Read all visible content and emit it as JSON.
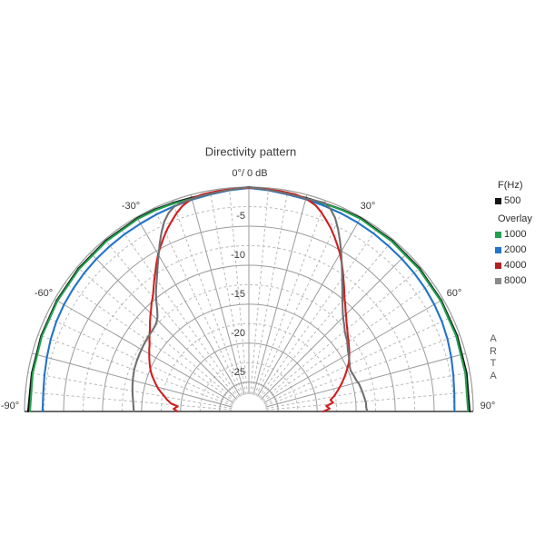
{
  "page": {
    "background": "#ffffff"
  },
  "chart_data": {
    "type": "polar-directivity",
    "title": "Directivity pattern",
    "apex_label": "0°/ 0 dB",
    "angle_axis": {
      "unit": "deg",
      "range": [
        -90,
        90
      ],
      "labeled_ticks": [
        {
          "deg": -90,
          "label": "-90°"
        },
        {
          "deg": -60,
          "label": "-60°"
        },
        {
          "deg": -30,
          "label": "-30°"
        },
        {
          "deg": 30,
          "label": "30°"
        },
        {
          "deg": 60,
          "label": "60°"
        },
        {
          "deg": 90,
          "label": "90°"
        }
      ],
      "solid_grid_step_deg": 15,
      "dashed_grid_step_deg": 5
    },
    "db_axis": {
      "unit": "dB",
      "max": 0,
      "min": -30,
      "labeled_rings": [
        {
          "db": -5,
          "label": "-5"
        },
        {
          "db": -10,
          "label": "-10"
        },
        {
          "db": -15,
          "label": "-15"
        },
        {
          "db": -20,
          "label": "-20"
        },
        {
          "db": -25,
          "label": "-25"
        }
      ],
      "solid_ring_step_db": 5,
      "dashed_ring_step_db": 2.5
    },
    "grid": {
      "solid_color": "#9b9b9b",
      "dashed_color": "#b9b9b9",
      "baseline_color": "#3c3c3c"
    },
    "series": [
      {
        "name": "500",
        "freq_hz": 500,
        "color": "#151515",
        "points": [
          [
            -90,
            -0.45
          ],
          [
            -80,
            -0.5
          ],
          [
            -70,
            -0.42
          ],
          [
            -60,
            -0.32
          ],
          [
            -50,
            -0.25
          ],
          [
            -40,
            -0.2
          ],
          [
            -30,
            -0.15
          ],
          [
            -25,
            -0.2
          ],
          [
            -20,
            -0.3
          ],
          [
            -15,
            -0.4
          ],
          [
            -10,
            -0.35
          ],
          [
            -5,
            -0.2
          ],
          [
            0,
            0
          ],
          [
            5,
            -0.2
          ],
          [
            10,
            -0.35
          ],
          [
            15,
            -0.42
          ],
          [
            20,
            -0.38
          ],
          [
            25,
            -0.25
          ],
          [
            30,
            -0.12
          ],
          [
            40,
            -0.18
          ],
          [
            50,
            -0.22
          ],
          [
            60,
            -0.28
          ],
          [
            70,
            -0.35
          ],
          [
            80,
            -0.42
          ],
          [
            90,
            -0.45
          ]
        ]
      },
      {
        "name": "1000",
        "freq_hz": 1000,
        "color": "#21a14e",
        "points": [
          [
            -90,
            -0.7
          ],
          [
            -80,
            -0.62
          ],
          [
            -70,
            -0.52
          ],
          [
            -60,
            -0.42
          ],
          [
            -50,
            -0.35
          ],
          [
            -40,
            -0.3
          ],
          [
            -30,
            -0.25
          ],
          [
            -25,
            -0.3
          ],
          [
            -20,
            -0.4
          ],
          [
            -15,
            -0.52
          ],
          [
            -10,
            -0.45
          ],
          [
            -5,
            -0.25
          ],
          [
            0,
            -0.05
          ],
          [
            5,
            -0.25
          ],
          [
            10,
            -0.45
          ],
          [
            15,
            -0.52
          ],
          [
            20,
            -0.42
          ],
          [
            25,
            -0.3
          ],
          [
            30,
            -0.22
          ],
          [
            40,
            -0.28
          ],
          [
            50,
            -0.32
          ],
          [
            60,
            -0.38
          ],
          [
            70,
            -0.48
          ],
          [
            80,
            -0.58
          ],
          [
            90,
            -0.65
          ]
        ]
      },
      {
        "name": "2000",
        "freq_hz": 2000,
        "color": "#2273c9",
        "points": [
          [
            -90,
            -2.3
          ],
          [
            -85,
            -2.3
          ],
          [
            -80,
            -2.15
          ],
          [
            -75,
            -1.95
          ],
          [
            -70,
            -1.72
          ],
          [
            -65,
            -1.52
          ],
          [
            -60,
            -1.38
          ],
          [
            -55,
            -1.28
          ],
          [
            -50,
            -1.18
          ],
          [
            -45,
            -1.12
          ],
          [
            -40,
            -1.06
          ],
          [
            -35,
            -1.0
          ],
          [
            -30,
            -0.95
          ],
          [
            -25,
            -0.85
          ],
          [
            -20,
            -0.75
          ],
          [
            -15,
            -0.65
          ],
          [
            -10,
            -0.5
          ],
          [
            -5,
            -0.3
          ],
          [
            0,
            -0.1
          ],
          [
            5,
            -0.3
          ],
          [
            10,
            -0.5
          ],
          [
            15,
            -0.6
          ],
          [
            20,
            -0.68
          ],
          [
            25,
            -0.75
          ],
          [
            30,
            -0.82
          ],
          [
            35,
            -0.9
          ],
          [
            40,
            -1.0
          ],
          [
            45,
            -1.06
          ],
          [
            50,
            -1.12
          ],
          [
            55,
            -1.2
          ],
          [
            60,
            -1.32
          ],
          [
            65,
            -1.46
          ],
          [
            70,
            -1.66
          ],
          [
            75,
            -1.9
          ],
          [
            80,
            -2.15
          ],
          [
            85,
            -2.32
          ],
          [
            90,
            -2.4
          ]
        ]
      },
      {
        "name": "4000",
        "freq_hz": 4000,
        "color": "#cf1f1f",
        "points": [
          [
            -90,
            -19.6
          ],
          [
            -88,
            -19.1
          ],
          [
            -86,
            -19.6
          ],
          [
            -84,
            -18.7
          ],
          [
            -82,
            -18.2
          ],
          [
            -80,
            -17.8
          ],
          [
            -78,
            -17.3
          ],
          [
            -76,
            -16.8
          ],
          [
            -74,
            -16.4
          ],
          [
            -72,
            -16.0
          ],
          [
            -70,
            -15.6
          ],
          [
            -68,
            -15.2
          ],
          [
            -66,
            -14.9
          ],
          [
            -64,
            -14.6
          ],
          [
            -62,
            -14.3
          ],
          [
            -60,
            -14.0
          ],
          [
            -58,
            -13.7
          ],
          [
            -56,
            -13.4
          ],
          [
            -54,
            -13.0
          ],
          [
            -52,
            -12.6
          ],
          [
            -50,
            -12.2
          ],
          [
            -48,
            -11.7
          ],
          [
            -46,
            -11.2
          ],
          [
            -44,
            -10.7
          ],
          [
            -42,
            -10.1
          ],
          [
            -40,
            -9.6
          ],
          [
            -38,
            -8.9
          ],
          [
            -36,
            -8.1
          ],
          [
            -34,
            -7.3
          ],
          [
            -32,
            -6.4
          ],
          [
            -30,
            -5.5
          ],
          [
            -28,
            -4.7
          ],
          [
            -26,
            -3.9
          ],
          [
            -24,
            -3.1
          ],
          [
            -22,
            -2.4
          ],
          [
            -20,
            -1.7
          ],
          [
            -18,
            -1.1
          ],
          [
            -15,
            -0.5
          ],
          [
            -12,
            -0.3
          ],
          [
            -8,
            -0.22
          ],
          [
            -5,
            -0.18
          ],
          [
            -2,
            -0.12
          ],
          [
            0,
            -0.1
          ],
          [
            2,
            -0.12
          ],
          [
            5,
            -0.18
          ],
          [
            8,
            -0.22
          ],
          [
            12,
            -0.3
          ],
          [
            15,
            -0.5
          ],
          [
            18,
            -1.0
          ],
          [
            20,
            -1.6
          ],
          [
            22,
            -2.3
          ],
          [
            24,
            -3.0
          ],
          [
            26,
            -3.8
          ],
          [
            28,
            -4.6
          ],
          [
            30,
            -5.4
          ],
          [
            32,
            -6.3
          ],
          [
            34,
            -7.2
          ],
          [
            36,
            -8.1
          ],
          [
            38,
            -8.9
          ],
          [
            40,
            -9.7
          ],
          [
            42,
            -10.3
          ],
          [
            44,
            -10.9
          ],
          [
            46,
            -11.4
          ],
          [
            48,
            -11.9
          ],
          [
            50,
            -12.3
          ],
          [
            52,
            -12.7
          ],
          [
            54,
            -13.0
          ],
          [
            56,
            -13.3
          ],
          [
            58,
            -13.6
          ],
          [
            60,
            -13.9
          ],
          [
            62,
            -14.2
          ],
          [
            64,
            -14.5
          ],
          [
            66,
            -14.9
          ],
          [
            68,
            -15.3
          ],
          [
            70,
            -15.7
          ],
          [
            72,
            -16.1
          ],
          [
            74,
            -16.5
          ],
          [
            76,
            -16.9
          ],
          [
            78,
            -17.3
          ],
          [
            80,
            -17.7
          ],
          [
            82,
            -18.2
          ],
          [
            84,
            -17.9
          ],
          [
            86,
            -18.8
          ],
          [
            88,
            -18.4
          ],
          [
            90,
            -19.2
          ]
        ]
      },
      {
        "name": "8000",
        "freq_hz": 8000,
        "color": "#707070",
        "points": [
          [
            -90,
            -14.0
          ],
          [
            -86,
            -13.9
          ],
          [
            -82,
            -13.7
          ],
          [
            -78,
            -13.5
          ],
          [
            -74,
            -13.3
          ],
          [
            -70,
            -13.1
          ],
          [
            -66,
            -13.0
          ],
          [
            -62,
            -12.9
          ],
          [
            -58,
            -12.8
          ],
          [
            -54,
            -12.7
          ],
          [
            -50,
            -12.6
          ],
          [
            -48,
            -12.5
          ],
          [
            -46,
            -12.3
          ],
          [
            -44,
            -11.9
          ],
          [
            -42,
            -11.2
          ],
          [
            -40,
            -10.3
          ],
          [
            -38,
            -9.4
          ],
          [
            -36,
            -8.6
          ],
          [
            -34,
            -7.7
          ],
          [
            -32,
            -6.7
          ],
          [
            -30,
            -5.6
          ],
          [
            -28,
            -4.4
          ],
          [
            -26,
            -3.2
          ],
          [
            -24,
            -2.1
          ],
          [
            -22,
            -1.3
          ],
          [
            -20,
            -0.8
          ],
          [
            -18,
            -0.65
          ],
          [
            -15,
            -0.55
          ],
          [
            -12,
            -0.45
          ],
          [
            -9,
            -0.4
          ],
          [
            -6,
            -0.3
          ],
          [
            -3,
            -0.15
          ],
          [
            0,
            -0.05
          ],
          [
            3,
            -0.15
          ],
          [
            6,
            -0.3
          ],
          [
            9,
            -0.4
          ],
          [
            12,
            -0.45
          ],
          [
            15,
            -0.5
          ],
          [
            18,
            -0.4
          ],
          [
            20,
            -0.3
          ],
          [
            22,
            -0.8
          ],
          [
            24,
            -1.6
          ],
          [
            26,
            -2.7
          ],
          [
            28,
            -3.9
          ],
          [
            30,
            -5.1
          ],
          [
            32,
            -6.3
          ],
          [
            34,
            -7.4
          ],
          [
            36,
            -8.4
          ],
          [
            38,
            -9.3
          ],
          [
            40,
            -10.1
          ],
          [
            42,
            -10.8
          ],
          [
            44,
            -11.4
          ],
          [
            46,
            -11.9
          ],
          [
            48,
            -12.3
          ],
          [
            50,
            -12.7
          ],
          [
            52,
            -13.0
          ],
          [
            54,
            -13.2
          ],
          [
            56,
            -13.5
          ],
          [
            58,
            -13.8
          ],
          [
            60,
            -14.0
          ],
          [
            62,
            -14.2
          ],
          [
            64,
            -14.4
          ],
          [
            66,
            -14.6
          ],
          [
            68,
            -14.7
          ],
          [
            70,
            -14.6
          ],
          [
            72,
            -14.5
          ],
          [
            74,
            -14.4
          ],
          [
            76,
            -14.2
          ],
          [
            78,
            -14.1
          ],
          [
            80,
            -14.0
          ],
          [
            82,
            -13.9
          ],
          [
            84,
            -13.8
          ],
          [
            86,
            -13.7
          ],
          [
            88,
            -13.7
          ],
          [
            90,
            -13.6
          ]
        ]
      }
    ]
  },
  "legend": {
    "freq_header": "F(Hz)",
    "current": {
      "label": "500",
      "color": "#151515"
    },
    "overlay_header": "Overlay",
    "overlays": [
      {
        "label": "1000",
        "color": "#21a14e"
      },
      {
        "label": "2000",
        "color": "#2273c9"
      },
      {
        "label": "4000",
        "color": "#b22222"
      },
      {
        "label": "8000",
        "color": "#8a8a8a"
      }
    ]
  },
  "branding": {
    "watermark": "ARTA"
  }
}
